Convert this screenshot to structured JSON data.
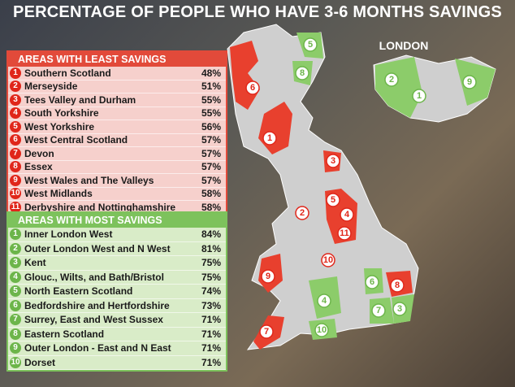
{
  "header": {
    "title": "PERCENTAGE OF PEOPLE WHO HAVE 3-6 MONTHS SAVINGS"
  },
  "inset_label": "LONDON",
  "least": {
    "heading": "AREAS WITH LEAST SAVINGS",
    "rows": [
      {
        "rank": "1",
        "name": "Southern Scotland",
        "value": "48%"
      },
      {
        "rank": "2",
        "name": "Merseyside",
        "value": "51%"
      },
      {
        "rank": "3",
        "name": "Tees Valley and Durham",
        "value": "55%"
      },
      {
        "rank": "4",
        "name": "South Yorkshire",
        "value": "55%"
      },
      {
        "rank": "5",
        "name": "West Yorkshire",
        "value": "56%"
      },
      {
        "rank": "6",
        "name": "West Central Scotland",
        "value": "57%"
      },
      {
        "rank": "7",
        "name": "Devon",
        "value": "57%"
      },
      {
        "rank": "8",
        "name": "Essex",
        "value": "57%"
      },
      {
        "rank": "9",
        "name": "West Wales and The Valleys",
        "value": "57%"
      },
      {
        "rank": "10",
        "name": "West Midlands",
        "value": "58%"
      },
      {
        "rank": "11",
        "name": "Derbyshire and Nottinghamshire",
        "value": "58%"
      }
    ]
  },
  "most": {
    "heading": "AREAS WITH MOST SAVINGS",
    "rows": [
      {
        "rank": "1",
        "name": "Inner London West",
        "value": "84%"
      },
      {
        "rank": "2",
        "name": "Outer London  West and N West",
        "value": "81%"
      },
      {
        "rank": "3",
        "name": "Kent",
        "value": "75%"
      },
      {
        "rank": "4",
        "name": "Glouc., Wilts, and Bath/Bristol",
        "value": "75%"
      },
      {
        "rank": "5",
        "name": "North Eastern Scotland",
        "value": "74%"
      },
      {
        "rank": "6",
        "name": "Bedfordshire and Hertfordshire",
        "value": "73%"
      },
      {
        "rank": "7",
        "name": "Surrey, East and West Sussex",
        "value": "71%"
      },
      {
        "rank": "8",
        "name": "Eastern Scotland",
        "value": "71%"
      },
      {
        "rank": "9",
        "name": "Outer London - East and N East",
        "value": "71%"
      },
      {
        "rank": "10",
        "name": "Dorset",
        "value": "71%"
      }
    ]
  }
}
